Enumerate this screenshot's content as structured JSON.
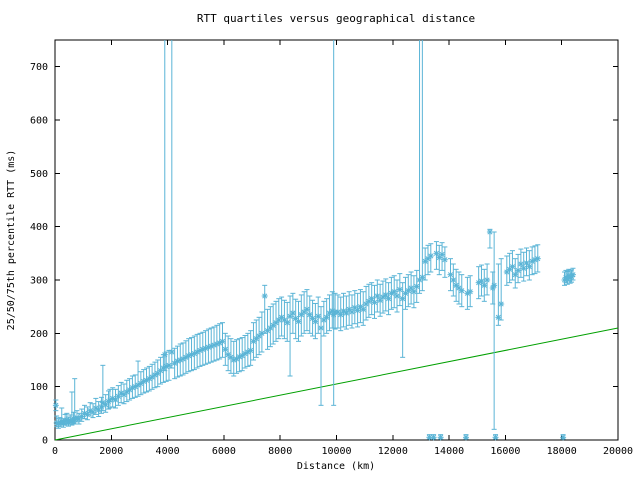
{
  "chart_data": {
    "type": "scatter",
    "title": "RTT quartiles versus geographical distance",
    "xlabel": "Distance (km)",
    "ylabel": "25/50/75th percentile RTT (ms)",
    "xlim": [
      0,
      20000
    ],
    "ylim": [
      0,
      750
    ],
    "xticks": [
      0,
      2000,
      4000,
      6000,
      8000,
      10000,
      12000,
      14000,
      16000,
      18000,
      20000
    ],
    "yticks": [
      0,
      100,
      200,
      300,
      400,
      500,
      600,
      700
    ],
    "grid": false,
    "legend": "none",
    "colors": {
      "points": "#5ab4d6",
      "baseline": "#00a000",
      "axis": "#000000"
    },
    "series": [
      {
        "name": "rtt-quartiles",
        "type": "yerrorbars",
        "marker": "asterisk",
        "color": "#5ab4d6",
        "note": "points are [distance_km, q25_ms, q50_ms, q75_ms]; 9999 means error bar extends past top of plot",
        "points": [
          [
            30,
            55,
            65,
            75
          ],
          [
            60,
            25,
            32,
            45
          ],
          [
            120,
            22,
            30,
            40
          ],
          [
            180,
            25,
            33,
            42
          ],
          [
            240,
            28,
            35,
            60
          ],
          [
            300,
            24,
            31,
            40
          ],
          [
            360,
            28,
            36,
            48
          ],
          [
            420,
            30,
            38,
            50
          ],
          [
            480,
            26,
            33,
            43
          ],
          [
            540,
            30,
            37,
            47
          ],
          [
            600,
            28,
            35,
            90
          ],
          [
            660,
            32,
            40,
            52
          ],
          [
            700,
            30,
            38,
            115
          ],
          [
            780,
            34,
            42,
            55
          ],
          [
            850,
            30,
            39,
            50
          ],
          [
            950,
            35,
            44,
            58
          ],
          [
            1050,
            40,
            50,
            65
          ],
          [
            1150,
            38,
            48,
            62
          ],
          [
            1250,
            45,
            55,
            70
          ],
          [
            1350,
            42,
            52,
            68
          ],
          [
            1450,
            48,
            60,
            78
          ],
          [
            1550,
            44,
            56,
            72
          ],
          [
            1650,
            50,
            62,
            80
          ],
          [
            1700,
            55,
            70,
            140
          ],
          [
            1800,
            52,
            66,
            85
          ],
          [
            1900,
            58,
            72,
            92
          ],
          [
            1950,
            60,
            75,
            95
          ],
          [
            2050,
            62,
            78,
            98
          ],
          [
            2150,
            60,
            75,
            95
          ],
          [
            2250,
            65,
            82,
            102
          ],
          [
            2350,
            70,
            88,
            108
          ],
          [
            2450,
            68,
            85,
            105
          ],
          [
            2550,
            72,
            90,
            112
          ],
          [
            2650,
            75,
            94,
            115
          ],
          [
            2750,
            78,
            98,
            120
          ],
          [
            2850,
            80,
            100,
            122
          ],
          [
            2950,
            82,
            103,
            148
          ],
          [
            3050,
            85,
            106,
            128
          ],
          [
            3150,
            88,
            110,
            132
          ],
          [
            3250,
            90,
            112,
            135
          ],
          [
            3350,
            92,
            115,
            138
          ],
          [
            3450,
            95,
            118,
            142
          ],
          [
            3550,
            98,
            122,
            146
          ],
          [
            3650,
            100,
            125,
            150
          ],
          [
            3750,
            105,
            130,
            155
          ],
          [
            3850,
            108,
            135,
            160
          ],
          [
            3900,
            130,
            160,
            9999
          ],
          [
            3950,
            110,
            138,
            165
          ],
          [
            4050,
            112,
            140,
            168
          ],
          [
            4150,
            135,
            165,
            9999
          ],
          [
            4250,
            115,
            144,
            172
          ],
          [
            4350,
            118,
            148,
            176
          ],
          [
            4450,
            120,
            150,
            180
          ],
          [
            4550,
            122,
            152,
            182
          ],
          [
            4650,
            125,
            155,
            186
          ],
          [
            4750,
            128,
            158,
            190
          ],
          [
            4850,
            130,
            160,
            192
          ],
          [
            4950,
            132,
            162,
            195
          ],
          [
            5050,
            135,
            165,
            198
          ],
          [
            5150,
            138,
            168,
            200
          ],
          [
            5250,
            140,
            170,
            202
          ],
          [
            5350,
            142,
            172,
            205
          ],
          [
            5450,
            144,
            174,
            208
          ],
          [
            5550,
            146,
            176,
            210
          ],
          [
            5650,
            148,
            178,
            212
          ],
          [
            5750,
            150,
            180,
            215
          ],
          [
            5850,
            152,
            182,
            218
          ],
          [
            5950,
            155,
            185,
            220
          ],
          [
            6050,
            140,
            170,
            200
          ],
          [
            6150,
            130,
            160,
            195
          ],
          [
            6250,
            125,
            155,
            190
          ],
          [
            6350,
            120,
            150,
            185
          ],
          [
            6450,
            125,
            152,
            188
          ],
          [
            6550,
            128,
            156,
            190
          ],
          [
            6650,
            130,
            158,
            192
          ],
          [
            6750,
            135,
            162,
            196
          ],
          [
            6850,
            138,
            165,
            200
          ],
          [
            6950,
            140,
            168,
            205
          ],
          [
            7050,
            150,
            185,
            220
          ],
          [
            7150,
            155,
            190,
            225
          ],
          [
            7250,
            160,
            195,
            230
          ],
          [
            7350,
            165,
            200,
            240
          ],
          [
            7450,
            200,
            270,
            290
          ],
          [
            7550,
            170,
            205,
            245
          ],
          [
            7650,
            175,
            210,
            250
          ],
          [
            7750,
            180,
            215,
            255
          ],
          [
            7850,
            185,
            220,
            260
          ],
          [
            7950,
            190,
            225,
            265
          ],
          [
            8050,
            195,
            230,
            268
          ],
          [
            8150,
            190,
            225,
            262
          ],
          [
            8250,
            185,
            220,
            258
          ],
          [
            8350,
            120,
            232,
            270
          ],
          [
            8450,
            200,
            238,
            275
          ],
          [
            8550,
            190,
            228,
            264
          ],
          [
            8650,
            185,
            222,
            260
          ],
          [
            8750,
            195,
            235,
            272
          ],
          [
            8850,
            200,
            240,
            278
          ],
          [
            8950,
            205,
            245,
            282
          ],
          [
            9050,
            200,
            235,
            270
          ],
          [
            9150,
            195,
            228,
            262
          ],
          [
            9250,
            190,
            222,
            256
          ],
          [
            9350,
            200,
            232,
            268
          ],
          [
            9450,
            65,
            210,
            250
          ],
          [
            9550,
            195,
            225,
            260
          ],
          [
            9650,
            200,
            230,
            265
          ],
          [
            9750,
            205,
            238,
            272
          ],
          [
            9850,
            210,
            242,
            278
          ],
          [
            9900,
            65,
            235,
            9999
          ],
          [
            9950,
            208,
            240,
            275
          ],
          [
            10050,
            210,
            240,
            272
          ],
          [
            10150,
            205,
            235,
            268
          ],
          [
            10250,
            212,
            242,
            275
          ],
          [
            10350,
            208,
            238,
            270
          ],
          [
            10450,
            215,
            245,
            278
          ],
          [
            10550,
            210,
            240,
            272
          ],
          [
            10650,
            218,
            248,
            280
          ],
          [
            10750,
            212,
            243,
            275
          ],
          [
            10850,
            220,
            250,
            282
          ],
          [
            10950,
            215,
            245,
            278
          ],
          [
            11050,
            225,
            255,
            288
          ],
          [
            11150,
            230,
            260,
            292
          ],
          [
            11250,
            235,
            265,
            295
          ],
          [
            11350,
            228,
            258,
            290
          ],
          [
            11450,
            240,
            270,
            300
          ],
          [
            11550,
            232,
            262,
            292
          ],
          [
            11650,
            238,
            268,
            298
          ],
          [
            11750,
            242,
            272,
            302
          ],
          [
            11850,
            235,
            265,
            295
          ],
          [
            11950,
            245,
            275,
            305
          ],
          [
            12050,
            248,
            278,
            308
          ],
          [
            12150,
            240,
            270,
            300
          ],
          [
            12250,
            252,
            282,
            312
          ],
          [
            12350,
            155,
            265,
            295
          ],
          [
            12450,
            245,
            275,
            305
          ],
          [
            12550,
            250,
            280,
            310
          ],
          [
            12650,
            255,
            285,
            315
          ],
          [
            12750,
            248,
            278,
            308
          ],
          [
            12850,
            258,
            288,
            318
          ],
          [
            12950,
            275,
            300,
            9999
          ],
          [
            13050,
            280,
            305,
            9999
          ],
          [
            13150,
            300,
            335,
            360
          ],
          [
            13250,
            310,
            340,
            365
          ],
          [
            13300,
            2,
            5,
            10
          ],
          [
            13350,
            315,
            345,
            368
          ],
          [
            13450,
            2,
            5,
            10
          ],
          [
            13550,
            320,
            350,
            372
          ],
          [
            13650,
            310,
            342,
            365
          ],
          [
            13700,
            2,
            5,
            10
          ],
          [
            13750,
            318,
            348,
            370
          ],
          [
            13850,
            305,
            338,
            362
          ],
          [
            14050,
            280,
            310,
            340
          ],
          [
            14150,
            270,
            300,
            330
          ],
          [
            14250,
            260,
            290,
            320
          ],
          [
            14350,
            255,
            285,
            315
          ],
          [
            14450,
            250,
            280,
            310
          ],
          [
            14600,
            2,
            5,
            10
          ],
          [
            14650,
            245,
            275,
            305
          ],
          [
            14750,
            250,
            278,
            308
          ],
          [
            15050,
            265,
            295,
            325
          ],
          [
            15150,
            270,
            298,
            328
          ],
          [
            15250,
            260,
            290,
            320
          ],
          [
            15350,
            272,
            300,
            330
          ],
          [
            15450,
            360,
            390,
            395
          ],
          [
            15550,
            255,
            285,
            315
          ],
          [
            15600,
            20,
            290,
            390
          ],
          [
            15650,
            2,
            5,
            10
          ],
          [
            15750,
            215,
            230,
            330
          ],
          [
            15850,
            225,
            255,
            340
          ],
          [
            16050,
            290,
            315,
            345
          ],
          [
            16150,
            295,
            320,
            350
          ],
          [
            16250,
            300,
            325,
            355
          ],
          [
            16350,
            285,
            310,
            340
          ],
          [
            16450,
            295,
            318,
            348
          ],
          [
            16550,
            305,
            330,
            358
          ],
          [
            16650,
            298,
            322,
            352
          ],
          [
            16750,
            308,
            332,
            360
          ],
          [
            16850,
            300,
            325,
            355
          ],
          [
            16950,
            310,
            335,
            362
          ],
          [
            17050,
            312,
            338,
            364
          ],
          [
            17150,
            315,
            340,
            366
          ],
          [
            18050,
            2,
            5,
            10
          ],
          [
            18100,
            290,
            300,
            315
          ],
          [
            18150,
            295,
            305,
            318
          ],
          [
            18200,
            292,
            302,
            316
          ],
          [
            18250,
            298,
            308,
            320
          ],
          [
            18300,
            294,
            304,
            317
          ],
          [
            18350,
            296,
            306,
            319
          ],
          [
            18400,
            300,
            310,
            322
          ]
        ]
      },
      {
        "name": "baseline",
        "type": "line",
        "color": "#00a000",
        "x": [
          0,
          20000
        ],
        "y": [
          0,
          210
        ]
      }
    ]
  }
}
